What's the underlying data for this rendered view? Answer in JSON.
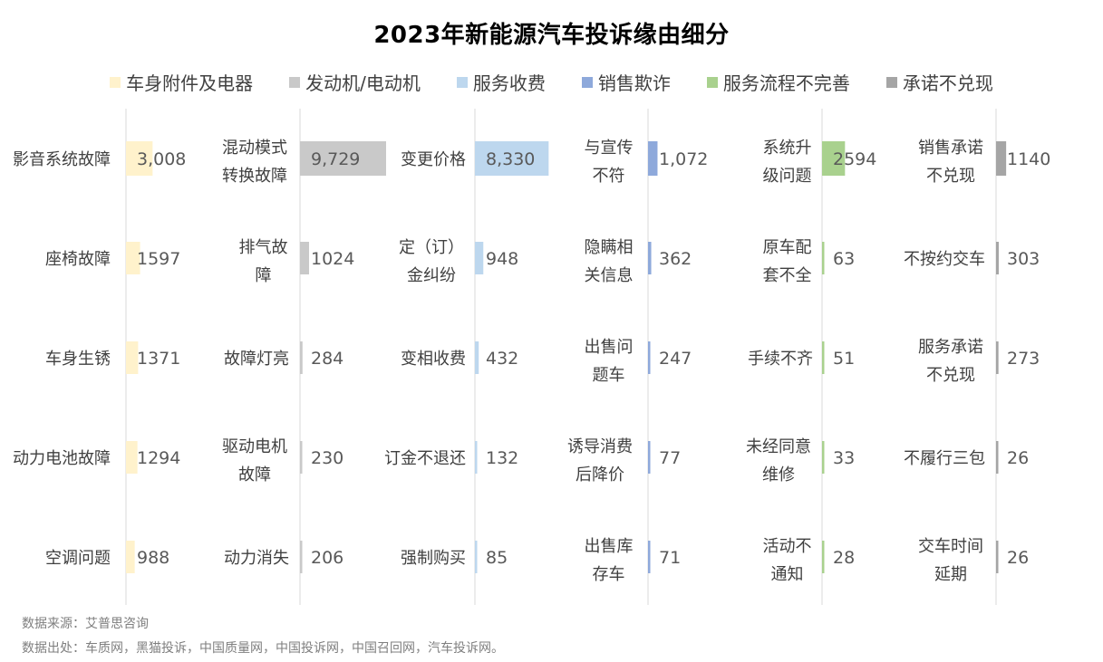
{
  "header": {
    "title": "2023年新能源汽车投诉缘由细分"
  },
  "footer": {
    "source": "数据来源：艾普思咨询",
    "origin": "数据出处：车质网，黑猫投诉，中国质量网，中国投诉网，中国召回网，汽车投诉网。"
  },
  "chart_data": {
    "type": "bar",
    "orientation": "horizontal",
    "title": "2023年新能源汽车投诉缘由细分",
    "legend_position": "top",
    "series": [
      {
        "name": "车身附件及电器",
        "color": "#FFF2CC",
        "categories": [
          "影音系统故障",
          "座椅故障",
          "车身生锈",
          "动力电池故障",
          "空调问题"
        ],
        "values": [
          3008,
          1597,
          1371,
          1294,
          988
        ],
        "labels": [
          "3,008",
          "1597",
          "1371",
          "1294",
          "988"
        ]
      },
      {
        "name": "发动机/电动机",
        "color": "#C9C9C9",
        "categories": [
          "混动模式\n转换故障",
          "排气故\n障",
          "故障灯亮",
          "驱动电机\n故障",
          "动力消失"
        ],
        "values": [
          9729,
          1024,
          284,
          230,
          206
        ],
        "labels": [
          "9,729",
          "1024",
          "284",
          "230",
          "206"
        ]
      },
      {
        "name": "服务收费",
        "color": "#BDD7EE",
        "categories": [
          "变更价格",
          "定（订）\n金纠纷",
          "变相收费",
          "订金不退还",
          "强制购买"
        ],
        "values": [
          8330,
          948,
          432,
          132,
          85
        ],
        "labels": [
          "8,330",
          "948",
          "432",
          "132",
          "85"
        ]
      },
      {
        "name": "销售欺诈",
        "color": "#8EA9DB",
        "categories": [
          "与宣传\n不符",
          "隐瞒相\n关信息",
          "出售问\n题车",
          "诱导消费\n后降价",
          "出售库\n存车"
        ],
        "values": [
          1072,
          362,
          247,
          77,
          71
        ],
        "labels": [
          "1,072",
          "362",
          "247",
          "77",
          "71"
        ]
      },
      {
        "name": "服务流程不完善",
        "color": "#A9D18E",
        "categories": [
          "系统升\n级问题",
          "原车配\n套不全",
          "手续不齐",
          "未经同意\n维修",
          "活动不\n通知"
        ],
        "values": [
          2594,
          63,
          51,
          33,
          28
        ],
        "labels": [
          "2594",
          "63",
          "51",
          "33",
          "28"
        ]
      },
      {
        "name": "承诺不兑现",
        "color": "#A5A5A5",
        "categories": [
          "销售承诺\n不兑现",
          "不按约交车",
          "服务承诺\n不兑现",
          "不履行三包",
          "交车时间\n延期"
        ],
        "values": [
          1140,
          303,
          273,
          26,
          26
        ],
        "labels": [
          "1140",
          "303",
          "273",
          "26",
          "26"
        ]
      }
    ]
  }
}
